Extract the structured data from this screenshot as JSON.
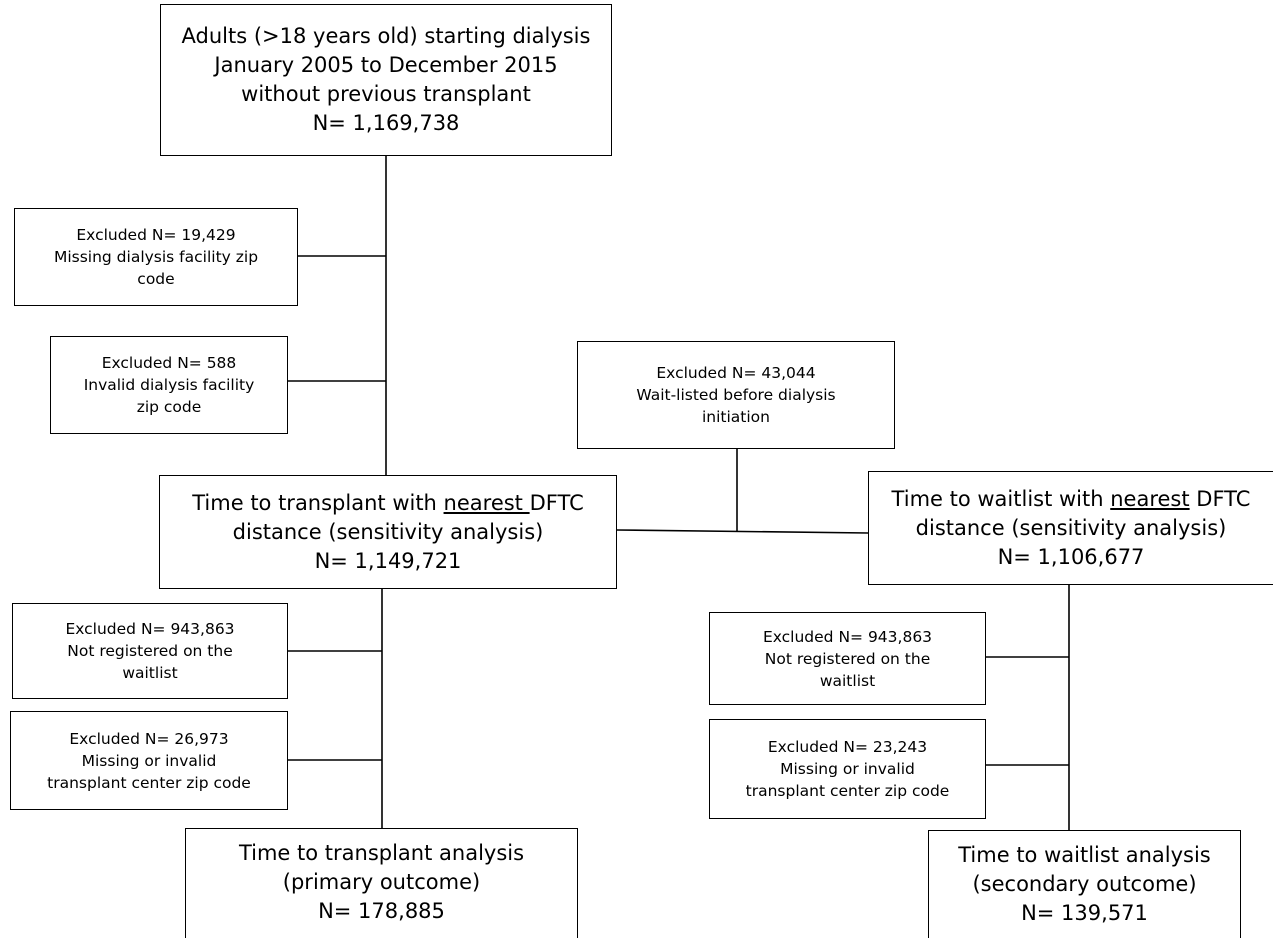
{
  "boxes": {
    "start": {
      "lines": [
        "Adults (>18 years old) starting dialysis",
        "January 2005 to December 2015",
        "without previous transplant",
        "N= 1,169,738"
      ]
    },
    "excl_zip_missing": {
      "lines": [
        "Excluded N= 19,429",
        "Missing dialysis facility zip",
        "code"
      ]
    },
    "excl_zip_invalid": {
      "lines": [
        "Excluded N= 588",
        "Invalid dialysis facility",
        "zip code"
      ]
    },
    "excl_waitlisted": {
      "lines": [
        "Excluded N= 43,044",
        "Wait-listed before dialysis",
        "initiation"
      ]
    },
    "transplant_sensitivity": {
      "pre": "Time to transplant with ",
      "under": "nearest ",
      "post": "DFTC",
      "lines": [
        "distance (sensitivity analysis)",
        "N= 1,149,721"
      ]
    },
    "waitlist_sensitivity": {
      "pre": "Time to waitlist with ",
      "under": "nearest",
      "post": " DFTC",
      "lines": [
        "distance (sensitivity analysis)",
        "N= 1,106,677"
      ]
    },
    "excl_not_registered_left": {
      "lines": [
        "Excluded N= 943,863",
        "Not registered on the",
        "waitlist"
      ]
    },
    "excl_center_zip_left": {
      "lines": [
        "Excluded N= 26,973",
        "Missing or invalid",
        "transplant center zip code"
      ]
    },
    "excl_not_registered_right": {
      "lines": [
        "Excluded N= 943,863",
        "Not registered on the",
        "waitlist"
      ]
    },
    "excl_center_zip_right": {
      "lines": [
        "Excluded N= 23,243",
        "Missing or invalid",
        "transplant center zip code"
      ]
    },
    "transplant_analysis": {
      "lines": [
        "Time to transplant analysis",
        "(primary outcome)",
        "N= 178,885"
      ]
    },
    "waitlist_analysis": {
      "lines": [
        "Time to waitlist analysis",
        "(secondary outcome)",
        "N= 139,571"
      ]
    }
  }
}
